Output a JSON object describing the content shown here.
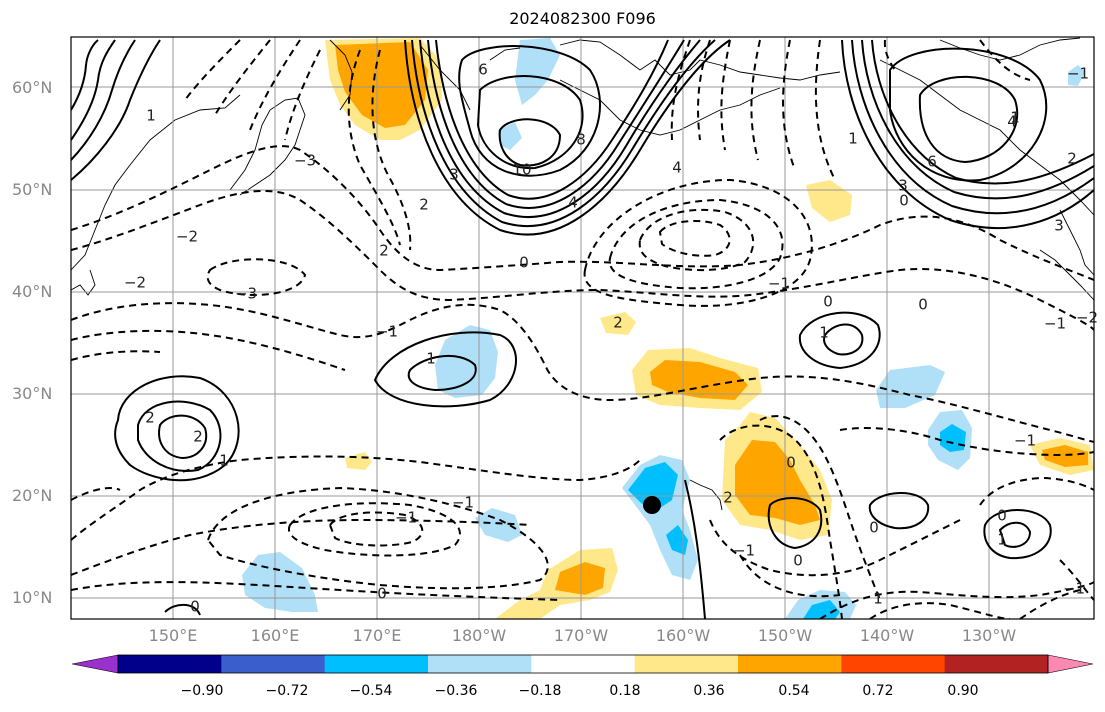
{
  "title": "2024082300 F096",
  "lat_labels": [
    "60°N",
    "50°N",
    "40°N",
    "30°N",
    "20°N",
    "10°N"
  ],
  "lon_labels": [
    "150°E",
    "160°E",
    "170°E",
    "180°W",
    "170°W",
    "160°W",
    "150°W",
    "140°W",
    "130°W"
  ],
  "colorbar": {
    "ticks": [
      "−0.90",
      "−0.72",
      "−0.54",
      "−0.36",
      "−0.18",
      "0.18",
      "0.36",
      "0.54",
      "0.72",
      "0.90"
    ],
    "colors": [
      "#9932cc",
      "#00008b",
      "#3a5fcd",
      "#00bfff",
      "#b0e0f8",
      "#ffffff",
      "#ffe88a",
      "#ffa500",
      "#ff4500",
      "#b22222",
      "#ff88b0"
    ]
  },
  "contour_labels": [
    "6",
    "8",
    "10",
    "4",
    "3",
    "4",
    "6",
    "4",
    "3",
    "2",
    "0",
    "0",
    "0",
    "1",
    "−2",
    "−2",
    "−3",
    "−3",
    "−1",
    "1",
    "2",
    "2",
    "1",
    "2",
    "−1",
    "−2",
    "−1",
    "0",
    "1",
    "−1",
    "0",
    "0",
    "0",
    "1",
    "1",
    "−1",
    "0",
    "0",
    "−1",
    "−1",
    "2",
    "2",
    "−1",
    "0",
    "1",
    "−1",
    "1",
    "2",
    "3"
  ],
  "marker": {
    "lat": 19,
    "lon_label": "163°W"
  }
}
